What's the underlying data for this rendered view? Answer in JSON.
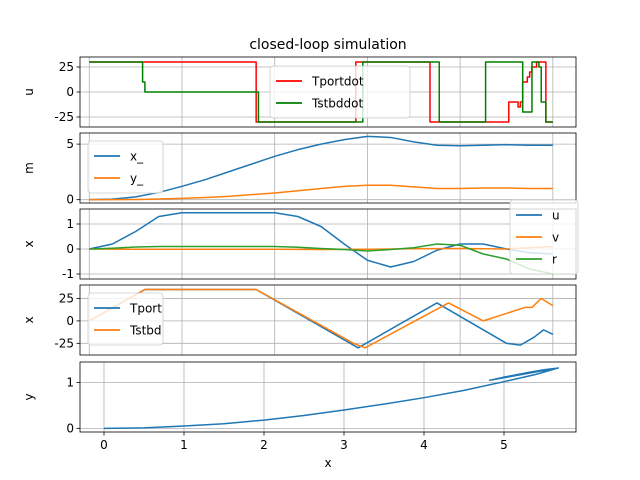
{
  "figure_title": "closed-loop simulation",
  "colors": {
    "blue": "#1f77b4",
    "orange": "#ff7f0e",
    "green": "#2ca02c",
    "red": "#ff0000",
    "dgreen": "#008000",
    "grid": "#b0b0b0"
  },
  "chart_data": [
    {
      "id": "u-panel",
      "type": "line",
      "title": "closed-loop simulation",
      "ylabel": "u",
      "xlim": [
        -0.2,
        10.5
      ],
      "ylim": [
        -35,
        35
      ],
      "xticks": [],
      "yticks": [
        -25,
        0,
        25
      ],
      "grid": true,
      "legend_position": "upper-center",
      "series": [
        {
          "name": "Tportdot",
          "color": "#ff0000",
          "step": true,
          "x": [
            0,
            1.1,
            1.15,
            3.55,
            3.6,
            5.7,
            5.75,
            7.3,
            7.35,
            9.0,
            9.05,
            9.2,
            9.25,
            9.3,
            9.35,
            9.42,
            9.45,
            9.5,
            9.55,
            9.6,
            9.65,
            9.7,
            9.75,
            9.8,
            9.85,
            10.0
          ],
          "y": [
            30,
            30,
            30,
            30,
            -30,
            -30,
            30,
            30,
            -30,
            -30,
            -10,
            -10,
            -15,
            -10,
            10,
            10,
            15,
            20,
            25,
            25,
            30,
            30,
            30,
            30,
            -30,
            -30
          ]
        },
        {
          "name": "Tstbddot",
          "color": "#008000",
          "step": true,
          "x": [
            0,
            1.1,
            1.15,
            1.2,
            3.6,
            3.65,
            5.85,
            5.9,
            7.5,
            7.55,
            8.5,
            8.55,
            9.3,
            9.35,
            9.5,
            9.55,
            9.62,
            9.65,
            9.7,
            9.75,
            9.8,
            9.85,
            9.9,
            10.0
          ],
          "y": [
            30,
            30,
            10,
            0,
            0,
            -30,
            -30,
            30,
            30,
            -30,
            -30,
            30,
            30,
            -20,
            -20,
            30,
            30,
            30,
            25,
            -10,
            -10,
            -30,
            -30,
            -30
          ]
        }
      ]
    },
    {
      "id": "m-panel",
      "type": "line",
      "ylabel": "m",
      "xlim": [
        -0.2,
        10.5
      ],
      "ylim": [
        -0.3,
        6.0
      ],
      "xticks": [],
      "yticks": [
        0,
        5
      ],
      "grid": true,
      "legend_position": "upper-left",
      "series": [
        {
          "name": "x_",
          "color": "#1f77b4",
          "x": [
            0,
            0.5,
            1,
            1.5,
            2,
            2.5,
            3,
            3.5,
            4,
            4.5,
            5,
            5.5,
            6,
            6.5,
            7,
            7.5,
            8,
            8.5,
            9,
            9.5,
            10
          ],
          "y": [
            0,
            0.05,
            0.25,
            0.65,
            1.2,
            1.8,
            2.5,
            3.2,
            3.9,
            4.5,
            5.0,
            5.4,
            5.7,
            5.6,
            5.2,
            4.9,
            4.85,
            4.9,
            4.95,
            4.9,
            4.9
          ]
        },
        {
          "name": "y_",
          "color": "#ff7f0e",
          "x": [
            0,
            0.5,
            1,
            1.5,
            2,
            2.5,
            3,
            3.5,
            4,
            4.5,
            5,
            5.5,
            6,
            6.5,
            7,
            7.5,
            8,
            8.5,
            9,
            9.5,
            10
          ],
          "y": [
            0,
            0,
            0.02,
            0.06,
            0.12,
            0.2,
            0.3,
            0.45,
            0.6,
            0.8,
            1.0,
            1.2,
            1.3,
            1.3,
            1.15,
            1.0,
            1.0,
            1.05,
            1.05,
            1.0,
            1.0
          ]
        }
      ]
    },
    {
      "id": "x-panel",
      "type": "line",
      "ylabel": "x",
      "xlim": [
        -0.2,
        10.5
      ],
      "ylim": [
        -1.2,
        1.6
      ],
      "xticks": [],
      "yticks": [
        -1,
        0,
        1
      ],
      "grid": true,
      "legend_position": "right",
      "series": [
        {
          "name": "u",
          "color": "#1f77b4",
          "x": [
            0,
            0.5,
            1,
            1.5,
            2,
            2.5,
            3,
            3.5,
            4,
            4.5,
            5,
            5.5,
            6,
            6.5,
            7,
            7.5,
            8,
            8.5,
            9,
            9.5,
            10
          ],
          "y": [
            0,
            0.2,
            0.7,
            1.3,
            1.45,
            1.45,
            1.45,
            1.45,
            1.45,
            1.3,
            0.9,
            0.2,
            -0.45,
            -0.72,
            -0.5,
            -0.05,
            0.2,
            0.2,
            0,
            -0.15,
            -0.2
          ]
        },
        {
          "name": "v",
          "color": "#ff7f0e",
          "x": [
            0,
            1,
            2,
            3,
            4,
            5,
            6,
            7,
            8,
            9,
            10
          ],
          "y": [
            0,
            -0.01,
            -0.01,
            -0.01,
            -0.01,
            -0.02,
            -0.01,
            0.01,
            0.02,
            0,
            0.1
          ]
        },
        {
          "name": "r",
          "color": "#2ca02c",
          "x": [
            0,
            0.5,
            1,
            1.5,
            2,
            3,
            4,
            4.5,
            5,
            5.5,
            6,
            6.5,
            7,
            7.5,
            8,
            8.5,
            9,
            9.5,
            10
          ],
          "y": [
            0,
            0.03,
            0.08,
            0.1,
            0.1,
            0.1,
            0.1,
            0.07,
            0.02,
            -0.02,
            -0.08,
            -0.02,
            0.05,
            0.2,
            0.15,
            -0.2,
            -0.4,
            -0.8,
            -1.0
          ]
        }
      ]
    },
    {
      "id": "thrust-panel",
      "type": "line",
      "ylabel": "x",
      "xlim": [
        -0.2,
        10.5
      ],
      "ylim": [
        -38,
        40
      ],
      "xticks": [],
      "yticks": [
        -25,
        0,
        25
      ],
      "grid": true,
      "legend_position": "upper-left",
      "series": [
        {
          "name": "Tport",
          "color": "#1f77b4",
          "x": [
            0,
            1.2,
            1.2,
            3.6,
            5.8,
            7.5,
            9.0,
            9.3,
            9.6,
            9.8,
            10.0
          ],
          "y": [
            0,
            35,
            35,
            35,
            -30,
            20,
            -25,
            -27,
            -18,
            -10,
            -15
          ]
        },
        {
          "name": "Tstbd",
          "color": "#ff7f0e",
          "x": [
            0,
            1.2,
            3.6,
            5.7,
            5.95,
            7.75,
            8.5,
            9.4,
            9.55,
            9.75,
            10.0
          ],
          "y": [
            0,
            35,
            35,
            -25,
            -30,
            20,
            0,
            15,
            15,
            25,
            17
          ]
        }
      ]
    },
    {
      "id": "xy-panel",
      "type": "line",
      "xlabel": "x",
      "ylabel": "y",
      "xlim": [
        -0.3,
        5.9
      ],
      "ylim": [
        -0.08,
        1.45
      ],
      "xticks": [
        0,
        1,
        2,
        3,
        4,
        5
      ],
      "yticks": [
        0,
        1
      ],
      "grid": true,
      "legend_position": "",
      "series": [
        {
          "name": "",
          "color": "#1f77b4",
          "x": [
            0,
            0.5,
            1,
            1.5,
            2,
            2.5,
            3,
            3.5,
            4,
            4.5,
            5,
            5.4,
            5.68,
            4.82,
            5.0,
            5.3,
            5.5,
            5.68
          ],
          "y": [
            0,
            0.01,
            0.05,
            0.1,
            0.18,
            0.28,
            0.4,
            0.53,
            0.67,
            0.83,
            1.02,
            1.18,
            1.32,
            1.05,
            1.12,
            1.22,
            1.28,
            1.32
          ]
        }
      ]
    }
  ]
}
